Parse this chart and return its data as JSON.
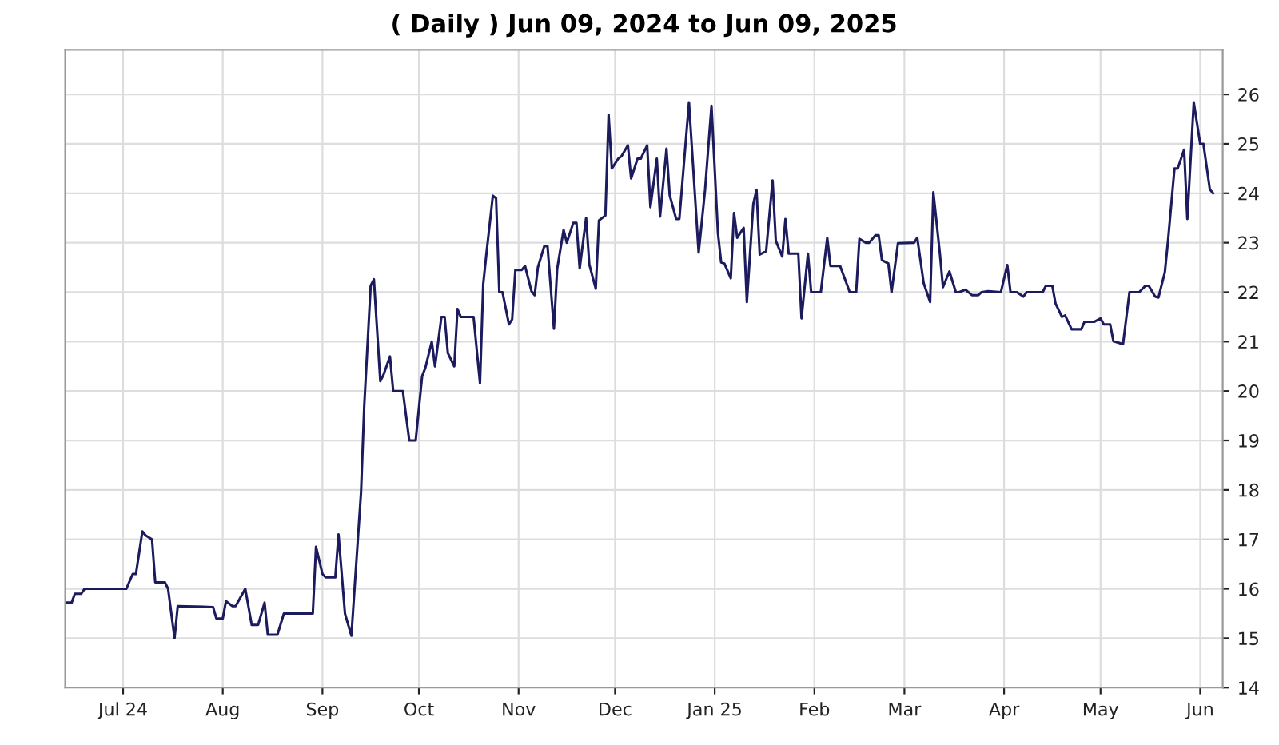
{
  "chart_data": {
    "type": "line",
    "title": "( Daily ) Jun 09, 2024 to Jun 09, 2025",
    "x": [
      "2024-06-13",
      "2024-06-15",
      "2024-06-16",
      "2024-06-18",
      "2024-06-19",
      "2024-07-02",
      "2024-07-04",
      "2024-07-05",
      "2024-07-07",
      "2024-07-08",
      "2024-07-10",
      "2024-07-11",
      "2024-07-14",
      "2024-07-15",
      "2024-07-17",
      "2024-07-18",
      "2024-07-29",
      "2024-07-30",
      "2024-08-01",
      "2024-08-02",
      "2024-08-04",
      "2024-08-05",
      "2024-08-08",
      "2024-08-10",
      "2024-08-12",
      "2024-08-14",
      "2024-08-15",
      "2024-08-18",
      "2024-08-20",
      "2024-08-29",
      "2024-08-30",
      "2024-09-01",
      "2024-09-02",
      "2024-09-05",
      "2024-09-06",
      "2024-09-08",
      "2024-09-10",
      "2024-09-13",
      "2024-09-14",
      "2024-09-16",
      "2024-09-17",
      "2024-09-19",
      "2024-09-20",
      "2024-09-22",
      "2024-09-23",
      "2024-09-26",
      "2024-09-28",
      "2024-09-30",
      "2024-10-02",
      "2024-10-03",
      "2024-10-05",
      "2024-10-06",
      "2024-10-08",
      "2024-10-09",
      "2024-10-10",
      "2024-10-12",
      "2024-10-13",
      "2024-10-14",
      "2024-10-18",
      "2024-10-20",
      "2024-10-21",
      "2024-10-22",
      "2024-10-24",
      "2024-10-25",
      "2024-10-26",
      "2024-10-27",
      "2024-10-29",
      "2024-10-30",
      "2024-10-31",
      "2024-11-02",
      "2024-11-03",
      "2024-11-05",
      "2024-11-06",
      "2024-11-07",
      "2024-11-09",
      "2024-11-10",
      "2024-11-12",
      "2024-11-13",
      "2024-11-15",
      "2024-11-16",
      "2024-11-18",
      "2024-11-19",
      "2024-11-20",
      "2024-11-22",
      "2024-11-23",
      "2024-11-25",
      "2024-11-26",
      "2024-11-28",
      "2024-11-29",
      "2024-11-30",
      "2024-12-02",
      "2024-12-03",
      "2024-12-05",
      "2024-12-06",
      "2024-12-08",
      "2024-12-09",
      "2024-12-11",
      "2024-12-12",
      "2024-12-14",
      "2024-12-15",
      "2024-12-17",
      "2024-12-18",
      "2024-12-20",
      "2024-12-21",
      "2024-12-24",
      "2024-12-27",
      "2024-12-29",
      "2024-12-31",
      "2025-01-02",
      "2025-01-03",
      "2025-01-04",
      "2025-01-06",
      "2025-01-07",
      "2025-01-08",
      "2025-01-10",
      "2025-01-11",
      "2025-01-13",
      "2025-01-14",
      "2025-01-15",
      "2025-01-17",
      "2025-01-19",
      "2025-01-20",
      "2025-01-22",
      "2025-01-23",
      "2025-01-24",
      "2025-01-27",
      "2025-01-28",
      "2025-01-30",
      "2025-01-31",
      "2025-02-03",
      "2025-02-05",
      "2025-02-06",
      "2025-02-09",
      "2025-02-12",
      "2025-02-14",
      "2025-02-15",
      "2025-02-17",
      "2025-02-18",
      "2025-02-20",
      "2025-02-21",
      "2025-02-22",
      "2025-02-24",
      "2025-02-25",
      "2025-02-27",
      "2025-03-04",
      "2025-03-05",
      "2025-03-07",
      "2025-03-09",
      "2025-03-10",
      "2025-03-12",
      "2025-03-13",
      "2025-03-15",
      "2025-03-17",
      "2025-03-18",
      "2025-03-20",
      "2025-03-22",
      "2025-03-24",
      "2025-03-25",
      "2025-03-27",
      "2025-03-31",
      "2025-04-02",
      "2025-04-03",
      "2025-04-05",
      "2025-04-07",
      "2025-04-08",
      "2025-04-13",
      "2025-04-14",
      "2025-04-16",
      "2025-04-17",
      "2025-04-19",
      "2025-04-20",
      "2025-04-22",
      "2025-04-25",
      "2025-04-26",
      "2025-04-29",
      "2025-05-01",
      "2025-05-02",
      "2025-05-04",
      "2025-05-05",
      "2025-05-08",
      "2025-05-10",
      "2025-05-13",
      "2025-05-15",
      "2025-05-16",
      "2025-05-18",
      "2025-05-19",
      "2025-05-21",
      "2025-05-22",
      "2025-05-24",
      "2025-05-25",
      "2025-05-27",
      "2025-05-28",
      "2025-05-30",
      "2025-06-01",
      "2025-06-02",
      "2025-06-04",
      "2025-06-05"
    ],
    "series": [
      {
        "color": "#1b1b5e",
        "values": [
          15.72,
          15.72,
          15.9,
          15.9,
          16.0,
          16.0,
          16.3,
          16.3,
          17.16,
          17.08,
          17.0,
          16.13,
          16.13,
          16.0,
          15.0,
          15.65,
          15.63,
          15.4,
          15.4,
          15.75,
          15.65,
          15.65,
          16.0,
          15.27,
          15.27,
          15.72,
          15.07,
          15.07,
          15.5,
          15.5,
          16.85,
          16.3,
          16.23,
          16.23,
          17.1,
          15.5,
          15.05,
          17.95,
          19.7,
          22.13,
          22.26,
          20.2,
          20.33,
          20.7,
          20.0,
          20.0,
          19.0,
          19.0,
          20.3,
          20.47,
          21.0,
          20.5,
          21.5,
          21.5,
          20.77,
          20.5,
          21.66,
          21.5,
          21.5,
          20.16,
          22.16,
          22.78,
          23.95,
          23.9,
          22.0,
          22.0,
          21.35,
          21.45,
          22.45,
          22.45,
          22.53,
          22.02,
          21.94,
          22.5,
          22.93,
          22.93,
          21.26,
          22.47,
          23.26,
          23.0,
          23.4,
          23.4,
          22.48,
          23.5,
          22.56,
          22.07,
          23.45,
          23.55,
          25.59,
          24.5,
          24.7,
          24.75,
          24.97,
          24.3,
          24.7,
          24.7,
          24.97,
          23.72,
          24.7,
          23.53,
          24.9,
          23.96,
          23.48,
          23.48,
          25.84,
          22.8,
          24.07,
          25.77,
          23.2,
          22.6,
          22.58,
          22.28,
          23.6,
          23.1,
          23.3,
          21.8,
          23.78,
          24.07,
          22.76,
          22.83,
          24.26,
          23.04,
          22.72,
          23.48,
          22.78,
          22.78,
          21.47,
          22.78,
          22.0,
          22.0,
          23.1,
          22.53,
          22.53,
          22.0,
          22.0,
          23.08,
          23.0,
          23.0,
          23.15,
          23.15,
          22.65,
          22.58,
          22.0,
          22.99,
          23.0,
          23.1,
          22.18,
          21.8,
          24.02,
          22.8,
          22.1,
          22.42,
          22.0,
          22.0,
          22.05,
          21.94,
          21.94,
          22.0,
          22.02,
          22.0,
          22.55,
          22.0,
          22.0,
          21.91,
          22.0,
          22.0,
          22.13,
          22.13,
          21.77,
          21.5,
          21.53,
          21.25,
          21.25,
          21.4,
          21.4,
          21.47,
          21.35,
          21.35,
          21.01,
          20.95,
          22.0,
          22.0,
          22.13,
          22.13,
          21.91,
          21.89,
          22.4,
          23.05,
          24.5,
          24.5,
          24.88,
          23.48,
          25.84,
          25.0,
          25.0,
          24.08,
          24.0
        ]
      }
    ],
    "xlim": [
      "2024-06-13",
      "2025-06-08"
    ],
    "xticks": [
      {
        "value": "2024-07-01",
        "label": "Jul 24"
      },
      {
        "value": "2024-08-01",
        "label": "Aug"
      },
      {
        "value": "2024-09-01",
        "label": "Sep"
      },
      {
        "value": "2024-10-01",
        "label": "Oct"
      },
      {
        "value": "2024-11-01",
        "label": "Nov"
      },
      {
        "value": "2024-12-01",
        "label": "Dec"
      },
      {
        "value": "2025-01-01",
        "label": "Jan 25"
      },
      {
        "value": "2025-02-01",
        "label": "Feb"
      },
      {
        "value": "2025-03-01",
        "label": "Mar"
      },
      {
        "value": "2025-04-01",
        "label": "Apr"
      },
      {
        "value": "2025-05-01",
        "label": "May"
      },
      {
        "value": "2025-06-01",
        "label": "Jun"
      }
    ],
    "ylim": [
      14,
      26.9
    ],
    "yticks": [
      14,
      15,
      16,
      17,
      18,
      19,
      20,
      21,
      22,
      23,
      24,
      25,
      26
    ],
    "grid": true,
    "marker": "none",
    "line_style": "solid"
  }
}
